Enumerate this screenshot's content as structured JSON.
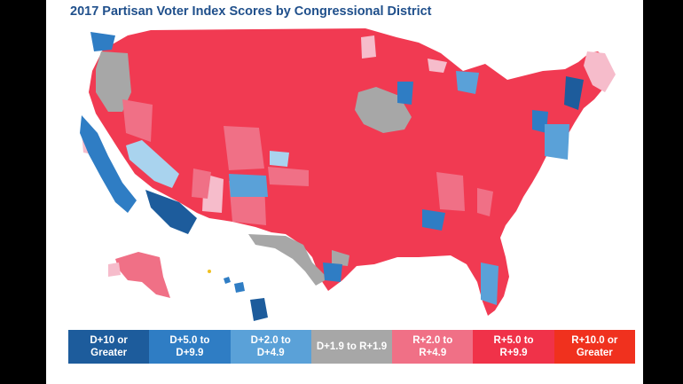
{
  "title": "2017 Partisan Voter Index Scores by Congressional District",
  "legend": [
    {
      "label": "D+10 or\nGreater",
      "color": "#1d5c9c"
    },
    {
      "label": "D+5.0 to\nD+9.9",
      "color": "#2f7dc4"
    },
    {
      "label": "D+2.0 to\nD+4.9",
      "color": "#5aa1d8"
    },
    {
      "label": "D+1.9 to R+1.9",
      "color": "#a7a7a7"
    },
    {
      "label": "R+2.0 to\nR+4.9",
      "color": "#f07086"
    },
    {
      "label": "R+5.0 to\nR+9.9",
      "color": "#f03249"
    },
    {
      "label": "R+10.0 or\nGreater",
      "color": "#f0311e"
    }
  ],
  "colors": {
    "map_main": "#f13a52",
    "light_pink": "#f6bccb",
    "pale_blue": "#a9d3ee",
    "background": "#ffffff",
    "title": "#1f4f8b"
  }
}
